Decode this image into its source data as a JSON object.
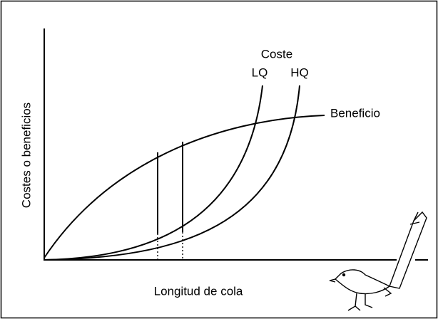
{
  "labels": {
    "cost_title": "Coste",
    "cost_lq": "LQ",
    "cost_hq": "HQ",
    "benefit": "Beneficio",
    "y_axis": "Costes o beneficios",
    "x_axis": "Longitud de cola"
  }
}
